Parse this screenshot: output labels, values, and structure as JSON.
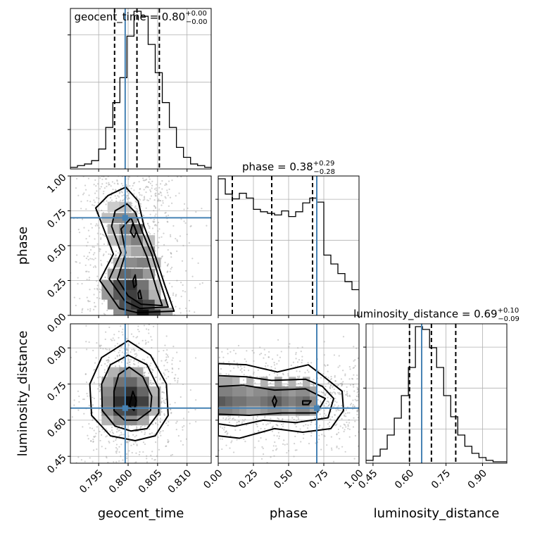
{
  "chart_data": {
    "type": "corner",
    "parameters": [
      "geocent_time",
      "phase",
      "luminosity_distance"
    ],
    "truth_color": "#4682b4",
    "truths": {
      "geocent_time": 0.7995,
      "phase": 0.7,
      "luminosity_distance": 0.65
    },
    "ranges": {
      "geocent_time": [
        0.7902,
        0.8141
      ],
      "phase": [
        0.0,
        1.0
      ],
      "luminosity_distance": [
        0.4214,
        1.0
      ]
    },
    "ticks": {
      "geocent_time": [
        "0.795",
        "0.800",
        "0.805",
        "0.810"
      ],
      "phase": [
        "0.00",
        "0.25",
        "0.50",
        "0.75",
        "1.00"
      ],
      "luminosity_distance": [
        "0.45",
        "0.60",
        "0.75",
        "0.90"
      ]
    },
    "ticks_values": {
      "geocent_time": [
        0.795,
        0.8,
        0.805,
        0.81
      ],
      "phase": [
        0.0,
        0.25,
        0.5,
        0.75,
        1.0
      ],
      "luminosity_distance": [
        0.45,
        0.6,
        0.75,
        0.9
      ]
    },
    "titles": {
      "geocent_time": {
        "text": "geocent_time = 0.80",
        "plus": "+0.00",
        "minus": "−0.00"
      },
      "phase": {
        "text": "phase = 0.38",
        "plus": "+0.29",
        "minus": "−0.28"
      },
      "luminosity_distance": {
        "text": "luminosity_distance = 0.69",
        "plus": "+0.10",
        "minus": "−0.09"
      }
    },
    "quantiles": {
      "geocent_time": [
        0.7977,
        0.8015,
        0.8053
      ],
      "phase": [
        0.1,
        0.38,
        0.67
      ],
      "luminosity_distance": [
        0.6,
        0.69,
        0.79
      ]
    },
    "histograms": {
      "geocent_time": {
        "bin_edges_start": 0.7902,
        "bin_width": 0.0012,
        "counts": [
          1,
          2,
          3,
          5,
          12,
          25,
          40,
          55,
          80,
          95,
          92,
          75,
          58,
          40,
          25,
          13,
          7,
          3,
          2,
          1
        ]
      },
      "phase": {
        "bin_edges_start": 0.0,
        "bin_width": 0.05,
        "counts": [
          170,
          151,
          145,
          152,
          146,
          132,
          129,
          127,
          125,
          130,
          123,
          129,
          140,
          146,
          141,
          75,
          64,
          52,
          42,
          32
        ]
      },
      "luminosity_distance": {
        "bin_edges_start": 0.4214,
        "bin_width": 0.029,
        "counts": [
          2,
          5,
          10,
          20,
          32,
          48,
          68,
          97,
          95,
          82,
          68,
          48,
          33,
          20,
          12,
          7,
          4,
          2,
          1,
          1
        ]
      }
    },
    "contours": {
      "phase_vs_geocent_time": [
        [
          [
            0.7996,
            0.92
          ],
          [
            0.8017,
            0.82
          ],
          [
            0.8027,
            0.64
          ],
          [
            0.8045,
            0.44
          ],
          [
            0.8062,
            0.22
          ],
          [
            0.8078,
            0.03
          ],
          [
            0.8015,
            0.02
          ],
          [
            0.7985,
            0.05
          ],
          [
            0.7952,
            0.25
          ],
          [
            0.7975,
            0.44
          ],
          [
            0.7955,
            0.66
          ],
          [
            0.7945,
            0.77
          ],
          [
            0.7966,
            0.86
          ]
        ],
        [
          [
            0.7998,
            0.8
          ],
          [
            0.8012,
            0.74
          ],
          [
            0.8024,
            0.6
          ],
          [
            0.804,
            0.44
          ],
          [
            0.8056,
            0.22
          ],
          [
            0.8068,
            0.06
          ],
          [
            0.802,
            0.05
          ],
          [
            0.7995,
            0.1
          ],
          [
            0.7968,
            0.26
          ],
          [
            0.7988,
            0.45
          ],
          [
            0.7972,
            0.64
          ],
          [
            0.7978,
            0.75
          ]
        ],
        [
          [
            0.8005,
            0.7
          ],
          [
            0.8016,
            0.58
          ],
          [
            0.8032,
            0.42
          ],
          [
            0.8049,
            0.18
          ],
          [
            0.8058,
            0.07
          ],
          [
            0.8022,
            0.08
          ],
          [
            0.8,
            0.14
          ],
          [
            0.7982,
            0.26
          ],
          [
            0.7996,
            0.45
          ],
          [
            0.7988,
            0.62
          ]
        ],
        [
          [
            0.8008,
            0.66
          ],
          [
            0.8014,
            0.6
          ],
          [
            0.801,
            0.56
          ],
          [
            0.8004,
            0.6
          ]
        ],
        [
          [
            0.8012,
            0.29
          ],
          [
            0.8014,
            0.22
          ],
          [
            0.801,
            0.2
          ],
          [
            0.8008,
            0.25
          ]
        ],
        [
          [
            0.802,
            0.18
          ],
          [
            0.8023,
            0.12
          ],
          [
            0.8018,
            0.12
          ],
          [
            0.8017,
            0.16
          ]
        ]
      ],
      "luminosity_distance_vs_geocent_time": [
        [
          [
            0.8,
            0.93
          ],
          [
            0.8038,
            0.87
          ],
          [
            0.8065,
            0.75
          ],
          [
            0.8068,
            0.62
          ],
          [
            0.8046,
            0.535
          ],
          [
            0.8012,
            0.515
          ],
          [
            0.797,
            0.535
          ],
          [
            0.7938,
            0.62
          ],
          [
            0.7935,
            0.75
          ],
          [
            0.7955,
            0.86
          ]
        ],
        [
          [
            0.8,
            0.87
          ],
          [
            0.8032,
            0.83
          ],
          [
            0.8052,
            0.73
          ],
          [
            0.8052,
            0.63
          ],
          [
            0.8032,
            0.565
          ],
          [
            0.8005,
            0.555
          ],
          [
            0.7978,
            0.575
          ],
          [
            0.7956,
            0.64
          ],
          [
            0.7955,
            0.75
          ],
          [
            0.797,
            0.83
          ]
        ],
        [
          [
            0.8002,
            0.82
          ],
          [
            0.8025,
            0.78
          ],
          [
            0.804,
            0.7
          ],
          [
            0.8038,
            0.64
          ],
          [
            0.8016,
            0.6
          ],
          [
            0.7994,
            0.6
          ],
          [
            0.7976,
            0.64
          ],
          [
            0.7976,
            0.72
          ],
          [
            0.7984,
            0.79
          ]
        ],
        [
          [
            0.8008,
            0.72
          ],
          [
            0.8014,
            0.68
          ],
          [
            0.801,
            0.64
          ],
          [
            0.8002,
            0.66
          ]
        ]
      ],
      "luminosity_distance_vs_phase": [
        [
          [
            0.0,
            0.835
          ],
          [
            0.2,
            0.83
          ],
          [
            0.42,
            0.8
          ],
          [
            0.64,
            0.83
          ],
          [
            0.73,
            0.79
          ],
          [
            0.88,
            0.72
          ],
          [
            0.89,
            0.64
          ],
          [
            0.8,
            0.565
          ],
          [
            0.6,
            0.55
          ],
          [
            0.4,
            0.565
          ],
          [
            0.15,
            0.525
          ],
          [
            0.0,
            0.535
          ]
        ],
        [
          [
            0.0,
            0.785
          ],
          [
            0.2,
            0.78
          ],
          [
            0.38,
            0.765
          ],
          [
            0.62,
            0.77
          ],
          [
            0.74,
            0.74
          ],
          [
            0.82,
            0.69
          ],
          [
            0.78,
            0.61
          ],
          [
            0.55,
            0.59
          ],
          [
            0.32,
            0.6
          ],
          [
            0.12,
            0.575
          ],
          [
            0.0,
            0.585
          ]
        ],
        [
          [
            0.0,
            0.74
          ],
          [
            0.18,
            0.745
          ],
          [
            0.4,
            0.725
          ],
          [
            0.62,
            0.73
          ],
          [
            0.76,
            0.69
          ],
          [
            0.7,
            0.63
          ],
          [
            0.45,
            0.63
          ],
          [
            0.22,
            0.62
          ],
          [
            0.0,
            0.625
          ]
        ],
        [
          [
            0.4,
            0.7
          ],
          [
            0.415,
            0.68
          ],
          [
            0.4,
            0.655
          ],
          [
            0.385,
            0.68
          ]
        ],
        [
          [
            0.6,
            0.68
          ],
          [
            0.66,
            0.68
          ],
          [
            0.64,
            0.665
          ],
          [
            0.6,
            0.665
          ]
        ]
      ]
    },
    "density_cells": {
      "phase_vs_geocent_time": [
        [
          0.7985,
          0.02,
          0.45
        ],
        [
          0.8005,
          0.02,
          0.65
        ],
        [
          0.8025,
          0.02,
          0.95
        ],
        [
          0.8045,
          0.02,
          0.75
        ],
        [
          0.8065,
          0.02,
          0.35
        ],
        [
          0.7975,
          0.08,
          0.45
        ],
        [
          0.7995,
          0.08,
          0.7
        ],
        [
          0.8015,
          0.08,
          0.8
        ],
        [
          0.8035,
          0.08,
          0.7
        ],
        [
          0.8055,
          0.08,
          0.35
        ],
        [
          0.7965,
          0.15,
          0.4
        ],
        [
          0.7985,
          0.15,
          0.65
        ],
        [
          0.8005,
          0.15,
          0.75
        ],
        [
          0.8025,
          0.15,
          0.6
        ],
        [
          0.8045,
          0.15,
          0.3
        ],
        [
          0.7965,
          0.22,
          0.4
        ],
        [
          0.7985,
          0.22,
          0.7
        ],
        [
          0.8005,
          0.22,
          0.8
        ],
        [
          0.8025,
          0.22,
          0.55
        ],
        [
          0.8045,
          0.22,
          0.25
        ],
        [
          0.7975,
          0.3,
          0.35
        ],
        [
          0.7995,
          0.3,
          0.6
        ],
        [
          0.8015,
          0.3,
          0.55
        ],
        [
          0.8035,
          0.3,
          0.4
        ],
        [
          0.7985,
          0.38,
          0.3
        ],
        [
          0.8005,
          0.38,
          0.45
        ],
        [
          0.8025,
          0.38,
          0.5
        ],
        [
          0.8045,
          0.38,
          0.3
        ],
        [
          0.7995,
          0.46,
          0.25
        ],
        [
          0.8015,
          0.46,
          0.35
        ],
        [
          0.8035,
          0.46,
          0.4
        ],
        [
          0.7975,
          0.54,
          0.25
        ],
        [
          0.7995,
          0.54,
          0.4
        ],
        [
          0.8015,
          0.54,
          0.5
        ],
        [
          0.8035,
          0.54,
          0.25
        ],
        [
          0.7975,
          0.62,
          0.3
        ],
        [
          0.7995,
          0.62,
          0.5
        ],
        [
          0.8015,
          0.62,
          0.6
        ],
        [
          0.7965,
          0.7,
          0.25
        ],
        [
          0.7985,
          0.7,
          0.45
        ],
        [
          0.8005,
          0.7,
          0.4
        ],
        [
          0.7975,
          0.78,
          0.2
        ],
        [
          0.7995,
          0.78,
          0.25
        ]
      ],
      "luminosity_distance_vs_geocent_time": [
        [
          0.7965,
          0.6,
          0.3
        ],
        [
          0.7985,
          0.6,
          0.45
        ],
        [
          0.8005,
          0.6,
          0.45
        ],
        [
          0.8025,
          0.6,
          0.35
        ],
        [
          0.7965,
          0.64,
          0.45
        ],
        [
          0.7985,
          0.64,
          0.7
        ],
        [
          0.8005,
          0.64,
          0.75
        ],
        [
          0.8025,
          0.64,
          0.6
        ],
        [
          0.8045,
          0.64,
          0.3
        ],
        [
          0.7965,
          0.68,
          0.5
        ],
        [
          0.7985,
          0.68,
          0.8
        ],
        [
          0.8005,
          0.68,
          0.95
        ],
        [
          0.8025,
          0.68,
          0.75
        ],
        [
          0.8045,
          0.68,
          0.35
        ],
        [
          0.7965,
          0.72,
          0.45
        ],
        [
          0.7985,
          0.72,
          0.7
        ],
        [
          0.8005,
          0.72,
          0.8
        ],
        [
          0.8025,
          0.72,
          0.6
        ],
        [
          0.8045,
          0.72,
          0.3
        ],
        [
          0.7965,
          0.76,
          0.35
        ],
        [
          0.7985,
          0.76,
          0.55
        ],
        [
          0.8005,
          0.76,
          0.6
        ],
        [
          0.8025,
          0.76,
          0.45
        ],
        [
          0.7975,
          0.8,
          0.3
        ],
        [
          0.7995,
          0.8,
          0.4
        ],
        [
          0.8015,
          0.8,
          0.35
        ]
      ],
      "luminosity_distance_vs_phase": [
        [
          0.025,
          0.64,
          0.5
        ],
        [
          0.075,
          0.64,
          0.5
        ],
        [
          0.125,
          0.64,
          0.45
        ],
        [
          0.175,
          0.64,
          0.4
        ],
        [
          0.225,
          0.64,
          0.35
        ],
        [
          0.275,
          0.64,
          0.35
        ],
        [
          0.325,
          0.64,
          0.4
        ],
        [
          0.375,
          0.64,
          0.45
        ],
        [
          0.425,
          0.64,
          0.45
        ],
        [
          0.475,
          0.64,
          0.4
        ],
        [
          0.525,
          0.64,
          0.35
        ],
        [
          0.575,
          0.64,
          0.45
        ],
        [
          0.625,
          0.64,
          0.45
        ],
        [
          0.675,
          0.64,
          0.35
        ],
        [
          0.025,
          0.68,
          0.65
        ],
        [
          0.075,
          0.68,
          0.6
        ],
        [
          0.125,
          0.68,
          0.55
        ],
        [
          0.175,
          0.68,
          0.55
        ],
        [
          0.225,
          0.68,
          0.5
        ],
        [
          0.275,
          0.68,
          0.5
        ],
        [
          0.325,
          0.68,
          0.55
        ],
        [
          0.375,
          0.68,
          0.6
        ],
        [
          0.425,
          0.68,
          0.65
        ],
        [
          0.475,
          0.68,
          0.55
        ],
        [
          0.525,
          0.68,
          0.5
        ],
        [
          0.575,
          0.68,
          0.55
        ],
        [
          0.625,
          0.68,
          0.6
        ],
        [
          0.675,
          0.68,
          0.45
        ],
        [
          0.025,
          0.72,
          0.5
        ],
        [
          0.075,
          0.72,
          0.5
        ],
        [
          0.125,
          0.72,
          0.45
        ],
        [
          0.175,
          0.72,
          0.45
        ],
        [
          0.225,
          0.72,
          0.4
        ],
        [
          0.275,
          0.72,
          0.45
        ],
        [
          0.325,
          0.72,
          0.45
        ],
        [
          0.375,
          0.72,
          0.5
        ],
        [
          0.425,
          0.72,
          0.5
        ],
        [
          0.475,
          0.72,
          0.45
        ],
        [
          0.525,
          0.72,
          0.4
        ],
        [
          0.575,
          0.72,
          0.45
        ],
        [
          0.625,
          0.72,
          0.45
        ],
        [
          0.675,
          0.72,
          0.35
        ],
        [
          0.025,
          0.76,
          0.35
        ],
        [
          0.075,
          0.76,
          0.35
        ],
        [
          0.125,
          0.76,
          0.3
        ],
        [
          0.225,
          0.76,
          0.3
        ],
        [
          0.325,
          0.76,
          0.3
        ],
        [
          0.425,
          0.76,
          0.35
        ],
        [
          0.525,
          0.76,
          0.3
        ],
        [
          0.625,
          0.76,
          0.3
        ]
      ]
    }
  }
}
